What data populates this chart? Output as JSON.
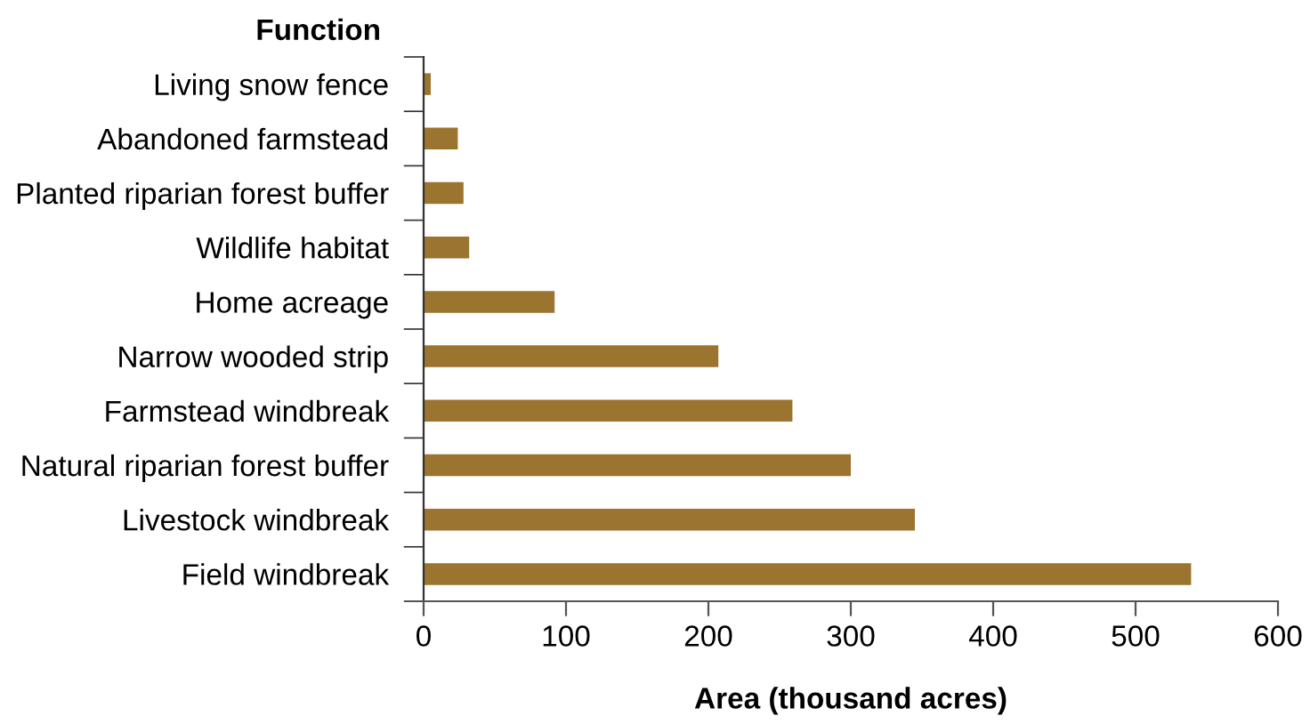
{
  "chart_data": {
    "type": "bar",
    "orientation": "horizontal",
    "ylabel": "Function",
    "xlabel": "Area (thousand acres)",
    "categories": [
      "Living snow fence",
      "Abandoned farmstead",
      "Planted riparian forest buffer",
      "Wildlife habitat",
      "Home acreage",
      "Narrow wooded strip",
      "Farmstead windbreak",
      "Natural riparian forest buffer",
      "Livestock windbreak",
      "Field windbreak"
    ],
    "values": [
      5,
      24,
      28,
      32,
      92,
      207,
      259,
      300,
      345,
      539
    ],
    "color": "#9b742f",
    "xlim": [
      0,
      600
    ],
    "xticks": [
      0,
      100,
      200,
      300,
      400,
      500,
      600
    ],
    "grid": false
  }
}
